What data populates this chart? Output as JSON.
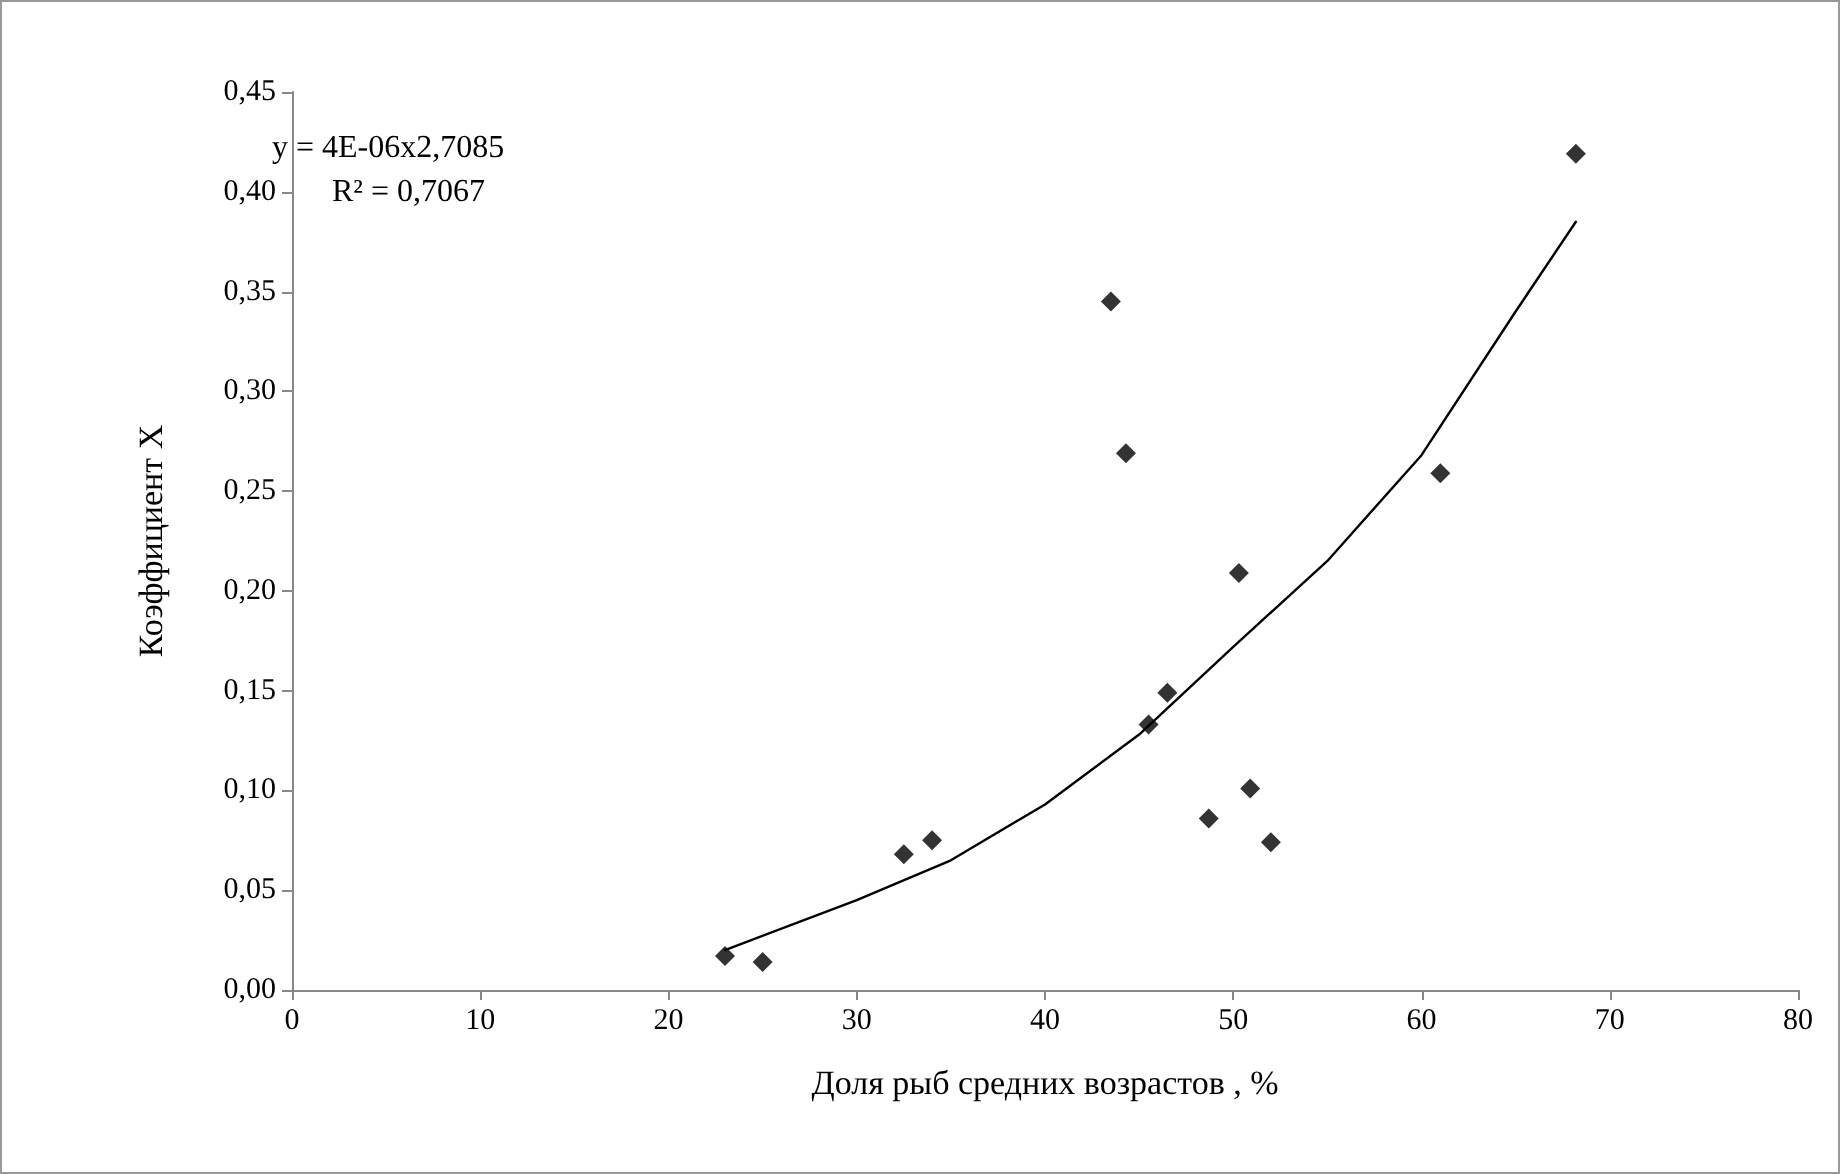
{
  "chart_data": {
    "type": "scatter",
    "xlabel": "Доля рыб средних возрастов , %",
    "ylabel": "Коэффициент Х",
    "annotations": [
      "y = 4E-06x2,7085",
      "R² = 0,7067"
    ],
    "series": [
      {
        "color": "#000000",
        "marker": "diamond",
        "x": [
          23,
          25,
          32.5,
          34,
          43.5,
          44.3,
          45.5,
          46.5,
          48.7,
          50.3,
          50.9,
          52,
          61,
          68.2
        ],
        "values": [
          0.017,
          0.014,
          0.068,
          0.075,
          0.345,
          0.269,
          0.133,
          0.149,
          0.086,
          0.209,
          0.101,
          0.074,
          0.259,
          0.419
        ]
      },
      {
        "type": "line",
        "color": "#000000",
        "marker": "none",
        "line_style": "solid",
        "x": [
          23,
          30,
          35,
          40,
          45,
          50,
          55,
          60,
          65,
          68.2
        ],
        "values": [
          0.02,
          0.045,
          0.065,
          0.093,
          0.128,
          0.172,
          0.215,
          0.268,
          0.34,
          0.385
        ]
      }
    ],
    "xlim": [
      0,
      80
    ],
    "xticks": [
      0,
      10,
      20,
      30,
      40,
      50,
      60,
      70,
      80
    ],
    "ylim": [
      0,
      0.45
    ],
    "yticks": [
      {
        "value": 0,
        "label": "0,00"
      },
      {
        "value": 0.05,
        "label": "0,05"
      },
      {
        "value": 0.1,
        "label": "0,10"
      },
      {
        "value": 0.15,
        "label": "0,15"
      },
      {
        "value": 0.2,
        "label": "0,20"
      },
      {
        "value": 0.25,
        "label": "0,25"
      },
      {
        "value": 0.3,
        "label": "0,30"
      },
      {
        "value": 0.35,
        "label": "0,35"
      },
      {
        "value": 0.4,
        "label": "0,40"
      },
      {
        "value": 0.45,
        "label": "0,45"
      }
    ],
    "grid": false
  }
}
